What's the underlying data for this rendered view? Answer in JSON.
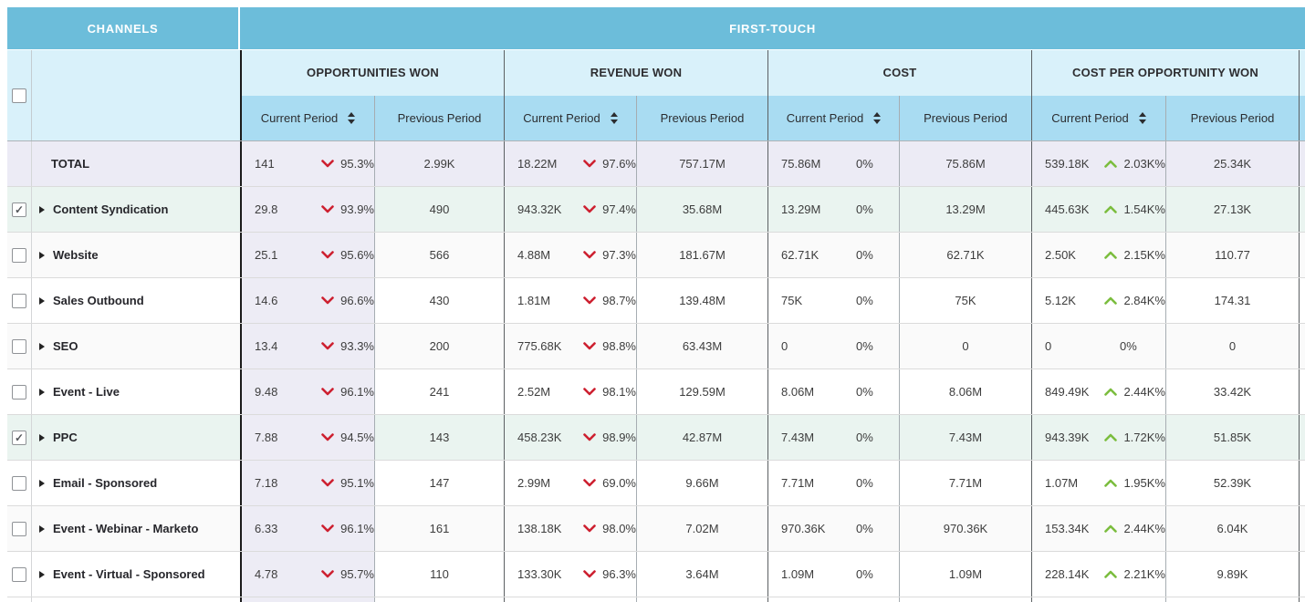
{
  "colors": {
    "band_blue": "#6cbdda",
    "group_header_blue": "#d9f1fa",
    "subheader_blue": "#a9dcf2",
    "sorted_column_lavender": "#edecf5",
    "total_row_lavender": "#ecebf5",
    "selected_row_mint": "#eaf4f0",
    "zebra_gray": "#fafafa",
    "negative_red": "#cd2030",
    "positive_green": "#7bbd3e"
  },
  "table": {
    "band": {
      "channels": "CHANNELS",
      "first_touch": "FIRST-TOUCH"
    },
    "groups": [
      {
        "label": "OPPORTUNITIES WON",
        "current": "Current Period",
        "previous": "Previous Period"
      },
      {
        "label": "REVENUE WON",
        "current": "Current Period",
        "previous": "Previous Period"
      },
      {
        "label": "COST",
        "current": "Current Period",
        "previous": "Previous Period"
      },
      {
        "label": "COST PER OPPORTUNITY WON",
        "current": "Current Period",
        "previous": "Previous Period"
      }
    ],
    "rows": [
      {
        "name": "TOTAL",
        "type": "total",
        "checkbox": "none",
        "metrics": [
          {
            "current": "141",
            "dir": "down",
            "pct": "95.3%",
            "previous": "2.99K"
          },
          {
            "current": "18.22M",
            "dir": "down",
            "pct": "97.6%",
            "previous": "757.17M"
          },
          {
            "current": "75.86M",
            "dir": "none",
            "pct": "0%",
            "previous": "75.86M"
          },
          {
            "current": "539.18K",
            "dir": "up",
            "pct": "2.03K%",
            "previous": "25.34K"
          }
        ]
      },
      {
        "name": "Content Syndication",
        "type": "channel",
        "checkbox": "checked",
        "metrics": [
          {
            "current": "29.8",
            "dir": "down",
            "pct": "93.9%",
            "previous": "490"
          },
          {
            "current": "943.32K",
            "dir": "down",
            "pct": "97.4%",
            "previous": "35.68M"
          },
          {
            "current": "13.29M",
            "dir": "none",
            "pct": "0%",
            "previous": "13.29M"
          },
          {
            "current": "445.63K",
            "dir": "up",
            "pct": "1.54K%",
            "previous": "27.13K"
          }
        ]
      },
      {
        "name": "Website",
        "type": "channel",
        "checkbox": "unchecked",
        "metrics": [
          {
            "current": "25.1",
            "dir": "down",
            "pct": "95.6%",
            "previous": "566"
          },
          {
            "current": "4.88M",
            "dir": "down",
            "pct": "97.3%",
            "previous": "181.67M"
          },
          {
            "current": "62.71K",
            "dir": "none",
            "pct": "0%",
            "previous": "62.71K"
          },
          {
            "current": "2.50K",
            "dir": "up",
            "pct": "2.15K%",
            "previous": "110.77"
          }
        ]
      },
      {
        "name": "Sales Outbound",
        "type": "channel",
        "checkbox": "unchecked",
        "metrics": [
          {
            "current": "14.6",
            "dir": "down",
            "pct": "96.6%",
            "previous": "430"
          },
          {
            "current": "1.81M",
            "dir": "down",
            "pct": "98.7%",
            "previous": "139.48M"
          },
          {
            "current": "75K",
            "dir": "none",
            "pct": "0%",
            "previous": "75K"
          },
          {
            "current": "5.12K",
            "dir": "up",
            "pct": "2.84K%",
            "previous": "174.31"
          }
        ]
      },
      {
        "name": "SEO",
        "type": "channel",
        "checkbox": "unchecked",
        "metrics": [
          {
            "current": "13.4",
            "dir": "down",
            "pct": "93.3%",
            "previous": "200"
          },
          {
            "current": "775.68K",
            "dir": "down",
            "pct": "98.8%",
            "previous": "63.43M"
          },
          {
            "current": "0",
            "dir": "none",
            "pct": "0%",
            "previous": "0"
          },
          {
            "current": "0",
            "dir": "none",
            "pct": "0%",
            "previous": "0"
          }
        ]
      },
      {
        "name": "Event - Live",
        "type": "channel",
        "checkbox": "unchecked",
        "metrics": [
          {
            "current": "9.48",
            "dir": "down",
            "pct": "96.1%",
            "previous": "241"
          },
          {
            "current": "2.52M",
            "dir": "down",
            "pct": "98.1%",
            "previous": "129.59M"
          },
          {
            "current": "8.06M",
            "dir": "none",
            "pct": "0%",
            "previous": "8.06M"
          },
          {
            "current": "849.49K",
            "dir": "up",
            "pct": "2.44K%",
            "previous": "33.42K"
          }
        ]
      },
      {
        "name": "PPC",
        "type": "channel",
        "checkbox": "checked",
        "metrics": [
          {
            "current": "7.88",
            "dir": "down",
            "pct": "94.5%",
            "previous": "143"
          },
          {
            "current": "458.23K",
            "dir": "down",
            "pct": "98.9%",
            "previous": "42.87M"
          },
          {
            "current": "7.43M",
            "dir": "none",
            "pct": "0%",
            "previous": "7.43M"
          },
          {
            "current": "943.39K",
            "dir": "up",
            "pct": "1.72K%",
            "previous": "51.85K"
          }
        ]
      },
      {
        "name": "Email - Sponsored",
        "type": "channel",
        "checkbox": "unchecked",
        "metrics": [
          {
            "current": "7.18",
            "dir": "down",
            "pct": "95.1%",
            "previous": "147"
          },
          {
            "current": "2.99M",
            "dir": "down",
            "pct": "69.0%",
            "previous": "9.66M"
          },
          {
            "current": "7.71M",
            "dir": "none",
            "pct": "0%",
            "previous": "7.71M"
          },
          {
            "current": "1.07M",
            "dir": "up",
            "pct": "1.95K%",
            "previous": "52.39K"
          }
        ]
      },
      {
        "name": "Event - Webinar - Marketo",
        "type": "channel",
        "checkbox": "unchecked",
        "metrics": [
          {
            "current": "6.33",
            "dir": "down",
            "pct": "96.1%",
            "previous": "161"
          },
          {
            "current": "138.18K",
            "dir": "down",
            "pct": "98.0%",
            "previous": "7.02M"
          },
          {
            "current": "970.36K",
            "dir": "none",
            "pct": "0%",
            "previous": "970.36K"
          },
          {
            "current": "153.34K",
            "dir": "up",
            "pct": "2.44K%",
            "previous": "6.04K"
          }
        ]
      },
      {
        "name": "Event - Virtual - Sponsored",
        "type": "channel",
        "checkbox": "unchecked",
        "metrics": [
          {
            "current": "4.78",
            "dir": "down",
            "pct": "95.7%",
            "previous": "110"
          },
          {
            "current": "133.30K",
            "dir": "down",
            "pct": "96.3%",
            "previous": "3.64M"
          },
          {
            "current": "1.09M",
            "dir": "none",
            "pct": "0%",
            "previous": "1.09M"
          },
          {
            "current": "228.14K",
            "dir": "up",
            "pct": "2.21K%",
            "previous": "9.89K"
          }
        ]
      }
    ]
  }
}
